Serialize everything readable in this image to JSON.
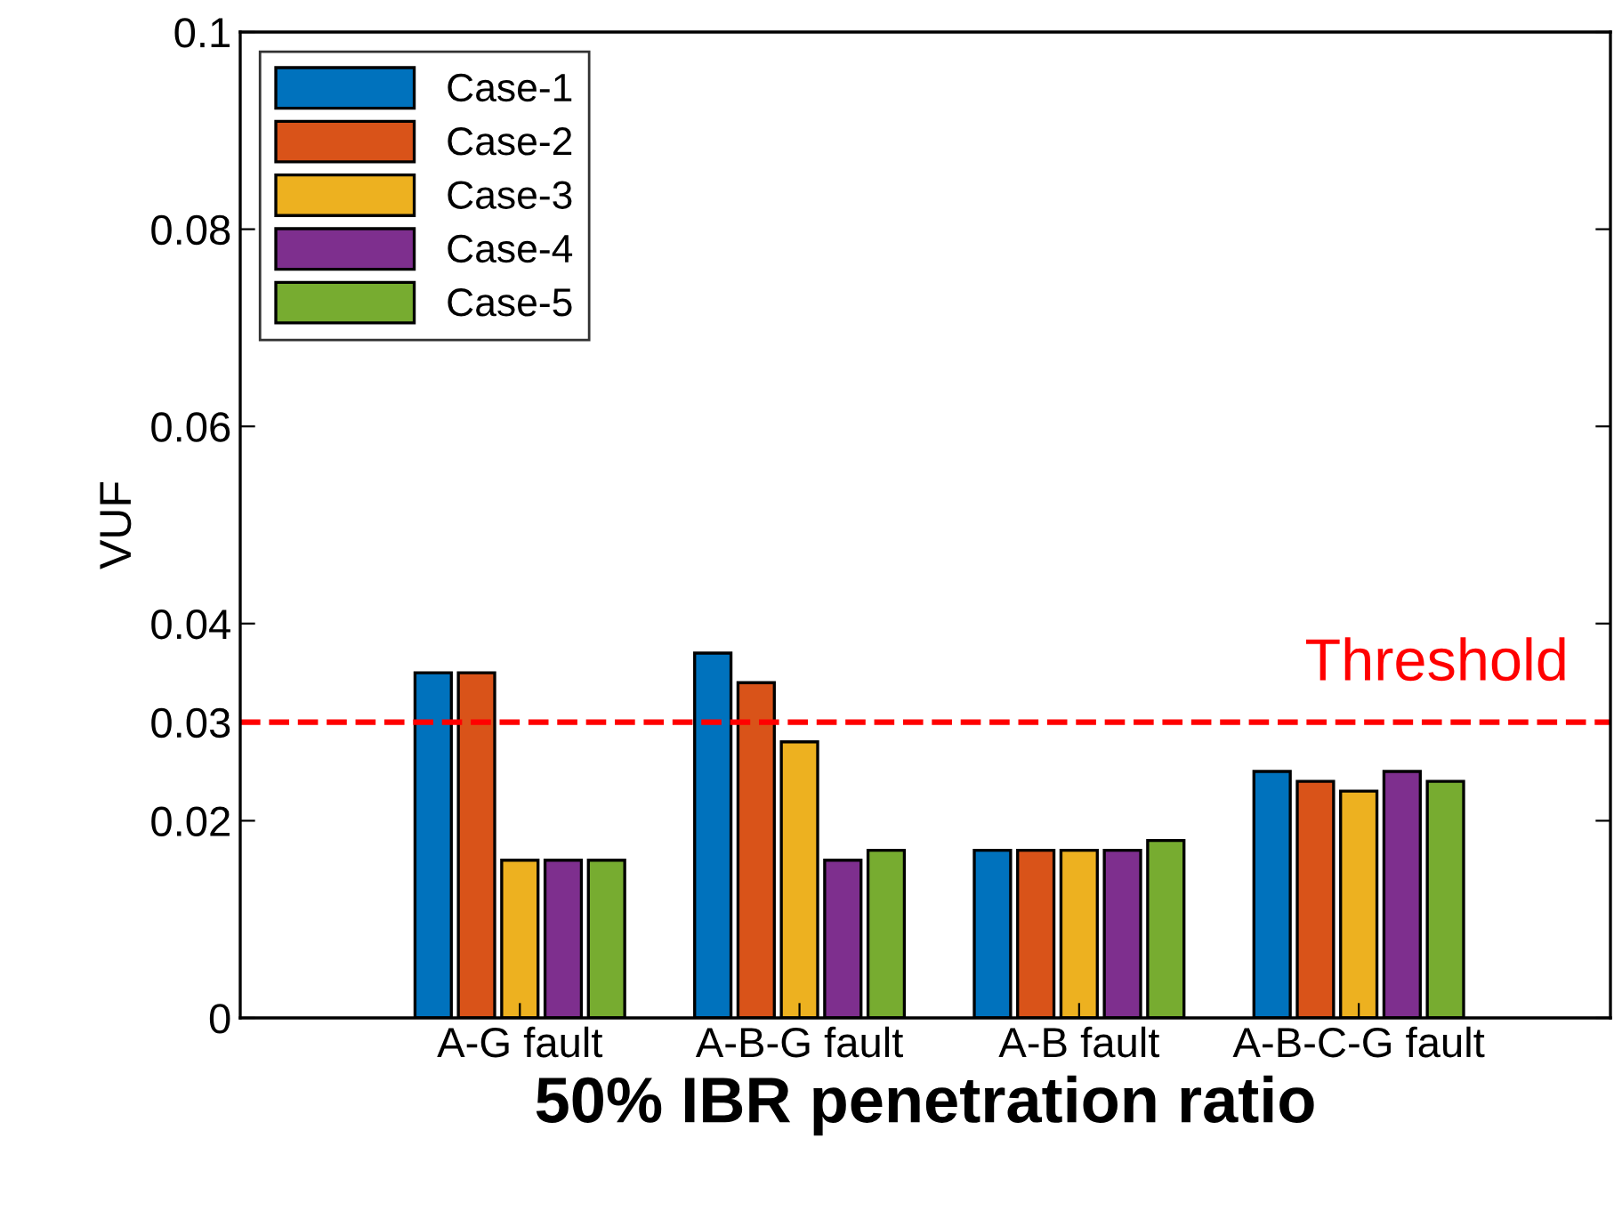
{
  "chart_data": {
    "type": "bar",
    "xlabel": "50% IBR penetration ratio",
    "ylabel": "VUF",
    "categories": [
      "A-G fault",
      "A-B-G fault",
      "A-B fault",
      "A-B-C-G fault"
    ],
    "series": [
      {
        "name": "Case-1",
        "color": "#0072bd",
        "values": [
          0.035,
          0.037,
          0.017,
          0.025
        ]
      },
      {
        "name": "Case-2",
        "color": "#d95319",
        "values": [
          0.035,
          0.034,
          0.017,
          0.024
        ]
      },
      {
        "name": "Case-3",
        "color": "#edb120",
        "values": [
          0.016,
          0.028,
          0.017,
          0.023
        ]
      },
      {
        "name": "Case-4",
        "color": "#7e2f8e",
        "values": [
          0.016,
          0.016,
          0.017,
          0.025
        ]
      },
      {
        "name": "Case-5",
        "color": "#77ac30",
        "values": [
          0.016,
          0.017,
          0.018,
          0.024
        ]
      }
    ],
    "ylim": [
      0,
      0.1
    ],
    "yticks": [
      0,
      0.02,
      0.03,
      0.04,
      0.06,
      0.08,
      0.1
    ],
    "ref_lines": [
      {
        "axis": "y",
        "value": 0.03,
        "label": "Threshold",
        "color": "#ff0000",
        "line_style": "dashed"
      }
    ],
    "legend": "top left",
    "grid": false
  }
}
